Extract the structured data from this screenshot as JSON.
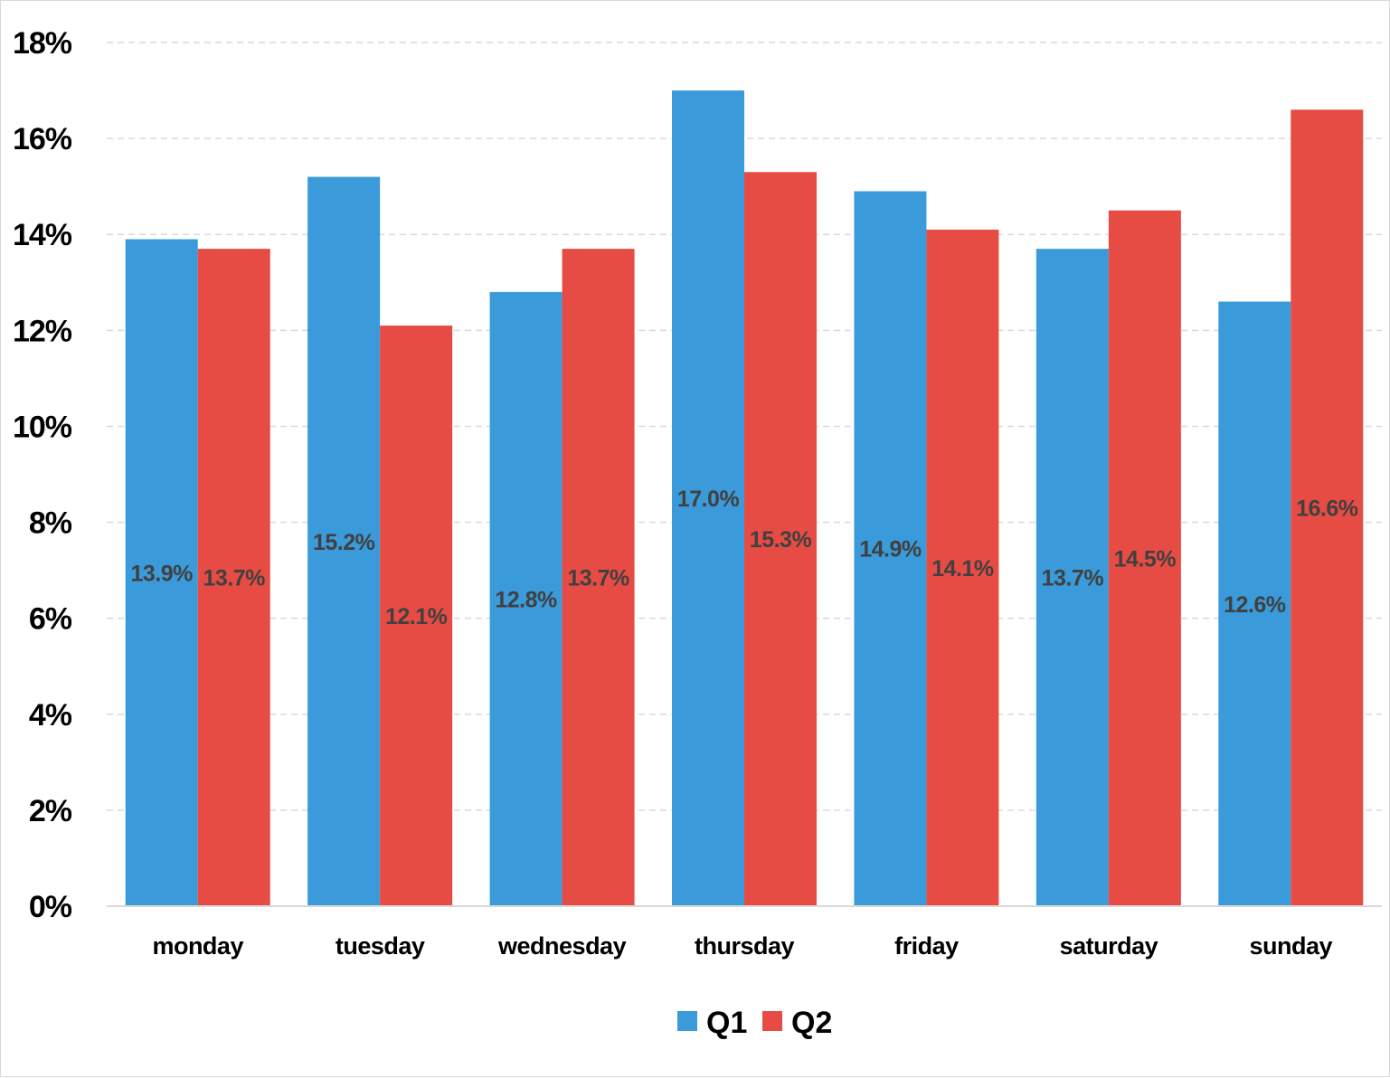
{
  "chart_data": {
    "type": "bar",
    "categories": [
      "monday",
      "tuesday",
      "wednesday",
      "thursday",
      "friday",
      "saturday",
      "sunday"
    ],
    "series": [
      {
        "name": "Q1",
        "color": "#3b9ad9",
        "values": [
          13.9,
          15.2,
          12.8,
          17.0,
          14.9,
          13.7,
          12.6
        ],
        "labels": [
          "13.9%",
          "15.2%",
          "12.8%",
          "17.0%",
          "14.9%",
          "13.7%",
          "12.6%"
        ]
      },
      {
        "name": "Q2",
        "color": "#e74c44",
        "values": [
          13.7,
          12.1,
          13.7,
          15.3,
          14.1,
          14.5,
          16.6
        ],
        "labels": [
          "13.7%",
          "12.1%",
          "13.7%",
          "15.3%",
          "14.1%",
          "14.5%",
          "16.6%"
        ]
      }
    ],
    "yticks": [
      "0%",
      "2%",
      "4%",
      "6%",
      "8%",
      "10%",
      "12%",
      "14%",
      "16%",
      "18%"
    ],
    "ylim": [
      0,
      18
    ],
    "grid": true,
    "legend": "bottom-center"
  }
}
